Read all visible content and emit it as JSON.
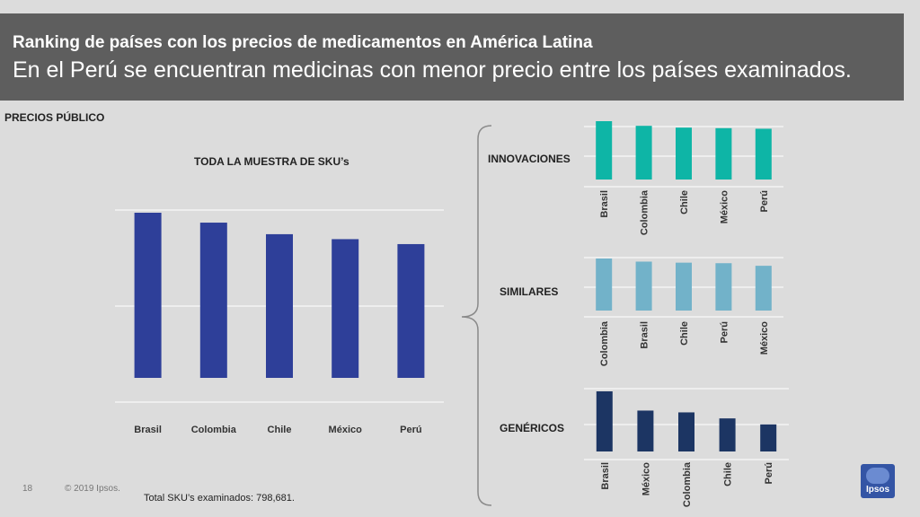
{
  "header": {
    "subtitle": "Ranking de países con los precios de medicamentos en América Latina",
    "title": "En el Perú se encuentran medicinas con menor precio entre los países examinados."
  },
  "section_label": "PRECIOS PÚBLICO",
  "footer": {
    "page_number": "18",
    "copyright": "© 2019 Ipsos.",
    "note": "Total SKU’s examinados: 798,681."
  },
  "logo_text": "Ipsos",
  "colors": {
    "background": "#dcdcdc",
    "header": "#5e5e5e",
    "total": "#2e3f99",
    "innovaciones": "#0eb5a6",
    "similares": "#72b2c9",
    "genericos": "#1c3563"
  },
  "chart_data": [
    {
      "type": "bar",
      "title": "TODA LA MUESTRA DE SKU’s",
      "categories": [
        "Brasil",
        "Colombia",
        "Chile",
        "México",
        "Perú"
      ],
      "values": [
        100,
        94,
        87,
        84,
        81
      ],
      "ylim": [
        0,
        100
      ],
      "grid": true
    },
    {
      "type": "bar",
      "title": "INNOVACIONES",
      "categories": [
        "Brasil",
        "Colombia",
        "Chile",
        "México",
        "Perú"
      ],
      "values": [
        100,
        92,
        89,
        88,
        87
      ],
      "ylim": [
        0,
        100
      ],
      "grid": true
    },
    {
      "type": "bar",
      "title": "SIMILARES",
      "categories": [
        "Colombia",
        "Brasil",
        "Chile",
        "Perú",
        "México"
      ],
      "values": [
        100,
        94,
        92,
        91,
        86
      ],
      "ylim": [
        0,
        100
      ],
      "grid": true
    },
    {
      "type": "bar",
      "title": "GENÉRICOS",
      "categories": [
        "Brasil",
        "México",
        "Colombia",
        "Chile",
        "Perú"
      ],
      "values": [
        100,
        68,
        65,
        55,
        45
      ],
      "ylim": [
        0,
        100
      ],
      "grid": true
    }
  ]
}
